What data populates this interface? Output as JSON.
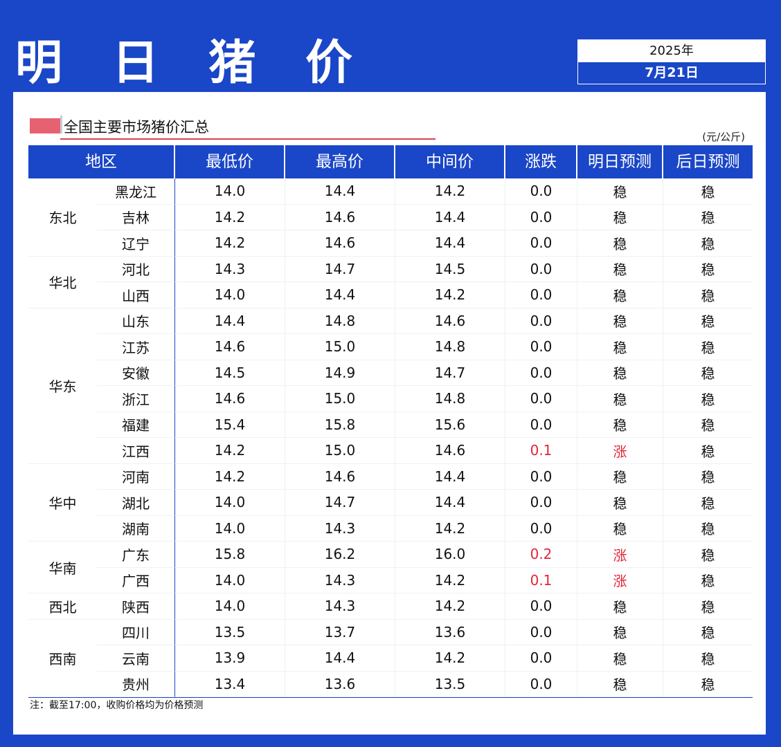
{
  "header": {
    "title": "明 日 猪 价",
    "year": "2025年",
    "date": "7月21日"
  },
  "section": {
    "title": "全国主要市场猪价汇总",
    "unit": "(元/公斤)"
  },
  "table": {
    "columns": [
      "地区",
      "最低价",
      "最高价",
      "中间价",
      "涨跌",
      "明日预测",
      "后日预测"
    ],
    "regions": [
      {
        "name": "东北",
        "rows": [
          {
            "province": "黑龙江",
            "low": "14.0",
            "high": "14.4",
            "mid": "14.2",
            "change": "0.0",
            "tomorrow": "稳",
            "after": "稳"
          },
          {
            "province": "吉林",
            "low": "14.2",
            "high": "14.6",
            "mid": "14.4",
            "change": "0.0",
            "tomorrow": "稳",
            "after": "稳"
          },
          {
            "province": "辽宁",
            "low": "14.2",
            "high": "14.6",
            "mid": "14.4",
            "change": "0.0",
            "tomorrow": "稳",
            "after": "稳"
          }
        ]
      },
      {
        "name": "华北",
        "rows": [
          {
            "province": "河北",
            "low": "14.3",
            "high": "14.7",
            "mid": "14.5",
            "change": "0.0",
            "tomorrow": "稳",
            "after": "稳"
          },
          {
            "province": "山西",
            "low": "14.0",
            "high": "14.4",
            "mid": "14.2",
            "change": "0.0",
            "tomorrow": "稳",
            "after": "稳"
          }
        ]
      },
      {
        "name": "华东",
        "rows": [
          {
            "province": "山东",
            "low": "14.4",
            "high": "14.8",
            "mid": "14.6",
            "change": "0.0",
            "tomorrow": "稳",
            "after": "稳"
          },
          {
            "province": "江苏",
            "low": "14.6",
            "high": "15.0",
            "mid": "14.8",
            "change": "0.0",
            "tomorrow": "稳",
            "after": "稳"
          },
          {
            "province": "安徽",
            "low": "14.5",
            "high": "14.9",
            "mid": "14.7",
            "change": "0.0",
            "tomorrow": "稳",
            "after": "稳"
          },
          {
            "province": "浙江",
            "low": "14.6",
            "high": "15.0",
            "mid": "14.8",
            "change": "0.0",
            "tomorrow": "稳",
            "after": "稳"
          },
          {
            "province": "福建",
            "low": "15.4",
            "high": "15.8",
            "mid": "15.6",
            "change": "0.0",
            "tomorrow": "稳",
            "after": "稳"
          },
          {
            "province": "江西",
            "low": "14.2",
            "high": "15.0",
            "mid": "14.6",
            "change": "0.1",
            "tomorrow": "涨",
            "after": "稳"
          }
        ]
      },
      {
        "name": "华中",
        "rows": [
          {
            "province": "河南",
            "low": "14.2",
            "high": "14.6",
            "mid": "14.4",
            "change": "0.0",
            "tomorrow": "稳",
            "after": "稳"
          },
          {
            "province": "湖北",
            "low": "14.0",
            "high": "14.7",
            "mid": "14.4",
            "change": "0.0",
            "tomorrow": "稳",
            "after": "稳"
          },
          {
            "province": "湖南",
            "low": "14.0",
            "high": "14.3",
            "mid": "14.2",
            "change": "0.0",
            "tomorrow": "稳",
            "after": "稳"
          }
        ]
      },
      {
        "name": "华南",
        "rows": [
          {
            "province": "广东",
            "low": "15.8",
            "high": "16.2",
            "mid": "16.0",
            "change": "0.2",
            "tomorrow": "涨",
            "after": "稳"
          },
          {
            "province": "广西",
            "low": "14.0",
            "high": "14.3",
            "mid": "14.2",
            "change": "0.1",
            "tomorrow": "涨",
            "after": "稳"
          }
        ]
      },
      {
        "name": "西北",
        "rows": [
          {
            "province": "陕西",
            "low": "14.0",
            "high": "14.3",
            "mid": "14.2",
            "change": "0.0",
            "tomorrow": "稳",
            "after": "稳"
          }
        ]
      },
      {
        "name": "西南",
        "rows": [
          {
            "province": "四川",
            "low": "13.5",
            "high": "13.7",
            "mid": "13.6",
            "change": "0.0",
            "tomorrow": "稳",
            "after": "稳"
          },
          {
            "province": "云南",
            "low": "13.9",
            "high": "14.4",
            "mid": "14.2",
            "change": "0.0",
            "tomorrow": "稳",
            "after": "稳"
          },
          {
            "province": "贵州",
            "low": "13.4",
            "high": "13.6",
            "mid": "13.5",
            "change": "0.0",
            "tomorrow": "稳",
            "after": "稳"
          }
        ]
      }
    ]
  },
  "note": "注：截至17:00，收购价格均为价格预测",
  "colors": {
    "brand": "#1a46c8",
    "rise": "#e0263a",
    "marker": "#e76270"
  }
}
